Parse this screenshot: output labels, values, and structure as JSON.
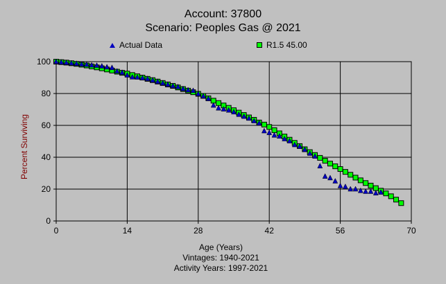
{
  "chart_data": {
    "type": "scatter",
    "title": "Account: 37800",
    "subtitle": "Scenario: Peoples Gas @ 2021",
    "xlabel": "Age (Years)",
    "ylabel": "Percent Surviving",
    "footnotes": [
      "Vintages: 1940-2021",
      "Activity Years: 1997-2021"
    ],
    "xlim": [
      0,
      70
    ],
    "ylim": [
      0,
      100
    ],
    "xticks": [
      0,
      14,
      28,
      42,
      56,
      70
    ],
    "yticks": [
      0,
      20,
      40,
      60,
      80,
      100
    ],
    "grid": true,
    "legend_position": "top",
    "colors": {
      "actual": "#0000c0",
      "fitted": "#00ff00",
      "grid": "#000000"
    },
    "series": [
      {
        "name": "Actual Data",
        "marker": "triangle",
        "x": [
          0,
          1,
          2,
          3,
          4,
          5,
          6,
          7,
          8,
          9,
          10,
          11,
          12,
          13,
          14,
          15,
          16,
          17,
          18,
          19,
          20,
          21,
          22,
          23,
          24,
          25,
          26,
          27,
          28,
          29,
          30,
          31,
          32,
          33,
          34,
          35,
          36,
          37,
          38,
          39,
          40,
          41,
          42,
          43,
          44,
          45,
          46,
          47,
          48,
          49,
          50,
          51,
          52,
          53,
          54,
          55,
          56,
          57,
          58,
          59,
          60,
          61,
          62,
          63,
          64
        ],
        "y": [
          100,
          99.7,
          99.4,
          99.1,
          98.8,
          98.4,
          98.2,
          97.8,
          97.6,
          97.2,
          96.6,
          96.2,
          94.0,
          93.2,
          91.5,
          90.3,
          90.2,
          89.8,
          89.3,
          88.4,
          87.5,
          86.6,
          85.7,
          84.8,
          84.2,
          83.0,
          82.2,
          81.8,
          79.8,
          78.4,
          76.8,
          72.6,
          70.8,
          70.2,
          69.5,
          68.4,
          66.8,
          65.6,
          64.4,
          62.8,
          61.4,
          56.5,
          55.4,
          53.8,
          53.2,
          51.5,
          50.2,
          47.8,
          46.8,
          44.8,
          42.4,
          40.6,
          34.5,
          28.0,
          27.0,
          25.0,
          22.0,
          21.5,
          20.0,
          20.0,
          19.0,
          18.5,
          18.5,
          17.5,
          18.0
        ]
      },
      {
        "name": "R1.5 45.00",
        "marker": "square",
        "x": [
          0,
          1,
          2,
          3,
          4,
          5,
          6,
          7,
          8,
          9,
          10,
          11,
          12,
          13,
          14,
          15,
          16,
          17,
          18,
          19,
          20,
          21,
          22,
          23,
          24,
          25,
          26,
          27,
          28,
          29,
          30,
          31,
          32,
          33,
          34,
          35,
          36,
          37,
          38,
          39,
          40,
          41,
          42,
          43,
          44,
          45,
          46,
          47,
          48,
          49,
          50,
          51,
          52,
          53,
          54,
          55,
          56,
          57,
          58,
          59,
          60,
          61,
          62,
          63,
          64,
          65,
          66,
          67,
          68
        ],
        "y": [
          100,
          99.7,
          99.4,
          99.0,
          98.6,
          98.1,
          97.6,
          97.0,
          96.4,
          95.8,
          95.1,
          94.4,
          93.7,
          93.0,
          92.5,
          91.6,
          90.8,
          90.0,
          89.2,
          88.4,
          87.5,
          86.6,
          85.7,
          84.8,
          83.8,
          82.8,
          81.8,
          80.8,
          79.8,
          78.5,
          77.0,
          75.5,
          74.0,
          72.5,
          71.0,
          69.5,
          68.0,
          66.5,
          65.0,
          63.5,
          61.8,
          60.5,
          59.0,
          57.0,
          55.0,
          53.0,
          51.0,
          49.0,
          47.0,
          45.0,
          43.2,
          41.4,
          39.6,
          37.8,
          36.0,
          34.3,
          32.6,
          30.8,
          29.0,
          27.2,
          25.5,
          23.8,
          22.2,
          20.6,
          19.0,
          17.3,
          15.5,
          13.4,
          11.2
        ]
      }
    ]
  }
}
